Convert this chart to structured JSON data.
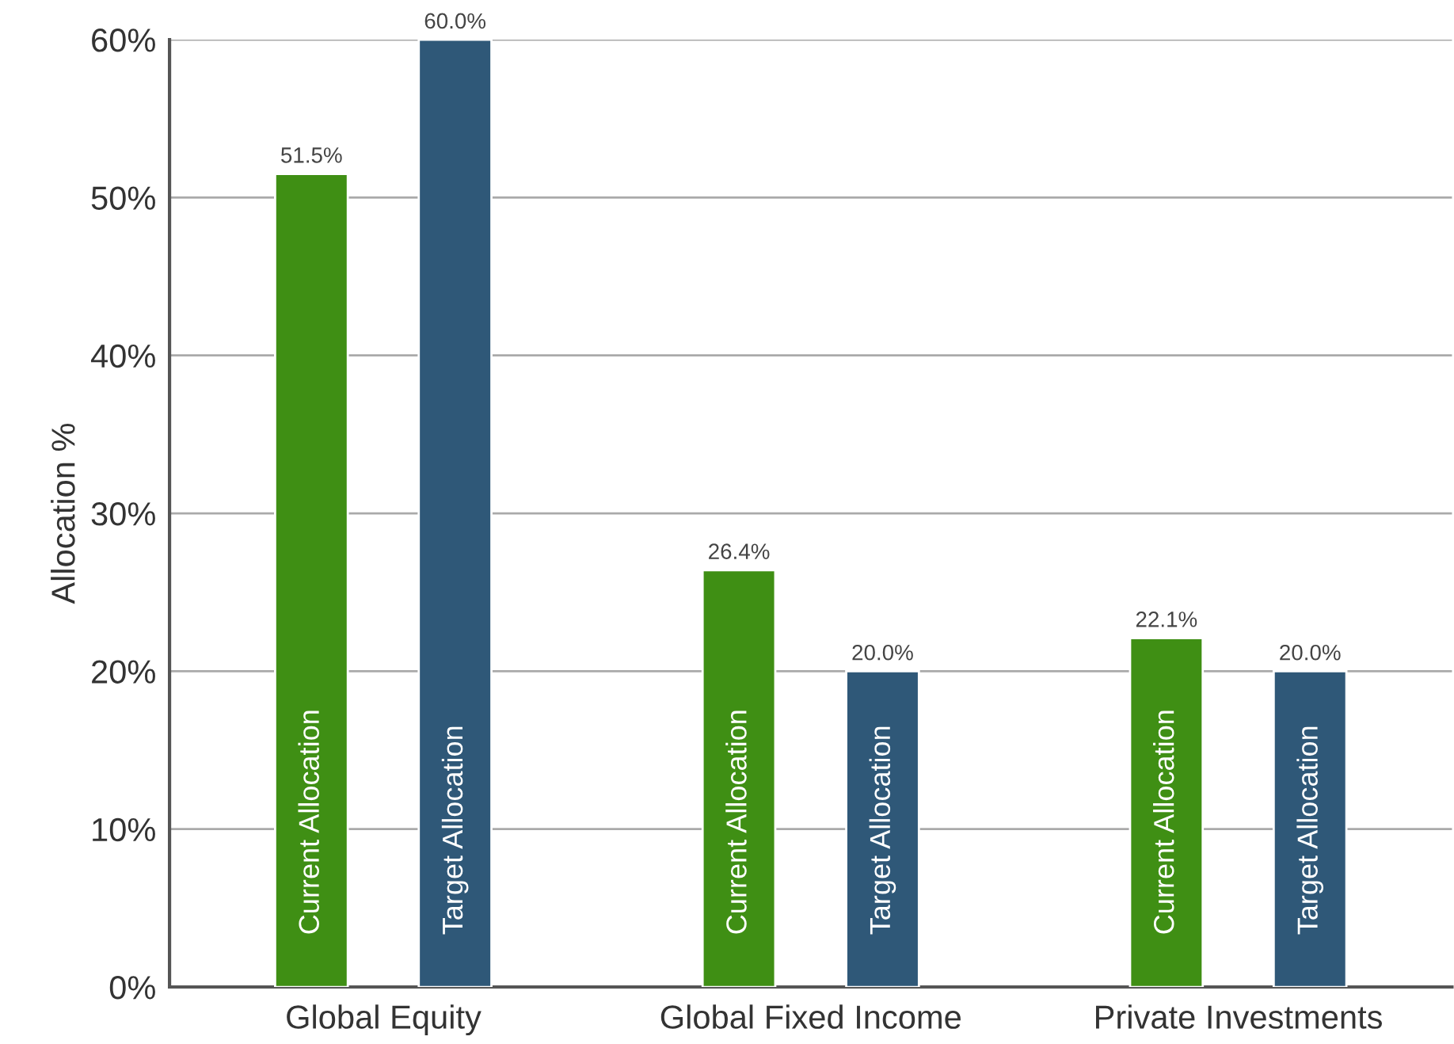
{
  "chart_data": {
    "type": "bar",
    "ylabel": "Allocation %",
    "categories": [
      "Global Equity",
      "Global Fixed Income",
      "Private Investments"
    ],
    "series": [
      {
        "name": "Current Allocation",
        "color": "#3f8f14",
        "values": [
          51.5,
          26.4,
          22.1
        ]
      },
      {
        "name": "Target Allocation",
        "color": "#2f5878",
        "values": [
          60.0,
          20.0,
          20.0
        ]
      }
    ],
    "ylim": [
      0,
      60
    ],
    "yticks": [
      {
        "value": 0,
        "label": "0%"
      },
      {
        "value": 10,
        "label": "10%"
      },
      {
        "value": 20,
        "label": "20%"
      },
      {
        "value": 30,
        "label": "30%"
      },
      {
        "value": 40,
        "label": "40%"
      },
      {
        "value": 50,
        "label": "50%"
      },
      {
        "value": 60,
        "label": "60%"
      }
    ],
    "value_labels": [
      [
        "51.5%",
        "26.4%",
        "22.1%"
      ],
      [
        "60.0%",
        "20.0%",
        "20.0%"
      ]
    ],
    "grid": "y",
    "legend": false
  }
}
